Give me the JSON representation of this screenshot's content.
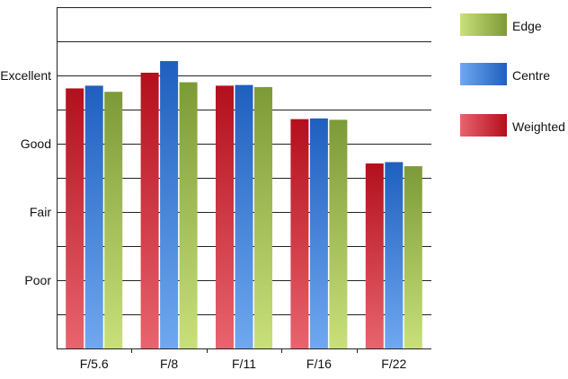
{
  "chart_data": {
    "type": "bar",
    "categories": [
      "F/5.6",
      "F/8",
      "F/11",
      "F/16",
      "F/22"
    ],
    "series": [
      {
        "name": "Weighted",
        "values": [
          3.81,
          4.04,
          3.85,
          3.36,
          2.71
        ],
        "colors": {
          "light": "#e8646e",
          "dark": "#b30f1c"
        }
      },
      {
        "name": "Centre",
        "values": [
          3.85,
          4.21,
          3.86,
          3.37,
          2.73
        ],
        "colors": {
          "light": "#6fa8f0",
          "dark": "#1f5fbf"
        }
      },
      {
        "name": "Edge",
        "values": [
          3.76,
          3.9,
          3.83,
          3.35,
          2.67
        ],
        "colors": {
          "light": "#c9e07a",
          "dark": "#7d9a38"
        }
      }
    ],
    "y_tick_labels": [
      {
        "label": "Poor",
        "value": 1
      },
      {
        "label": "Fair",
        "value": 2
      },
      {
        "label": "Good",
        "value": 3
      },
      {
        "label": "Excellent",
        "value": 4
      }
    ],
    "ylim": [
      0,
      5
    ],
    "grid_step": 0.5,
    "grid": true,
    "legend_position": "right",
    "legend_order": [
      "Edge",
      "Centre",
      "Weighted"
    ]
  }
}
